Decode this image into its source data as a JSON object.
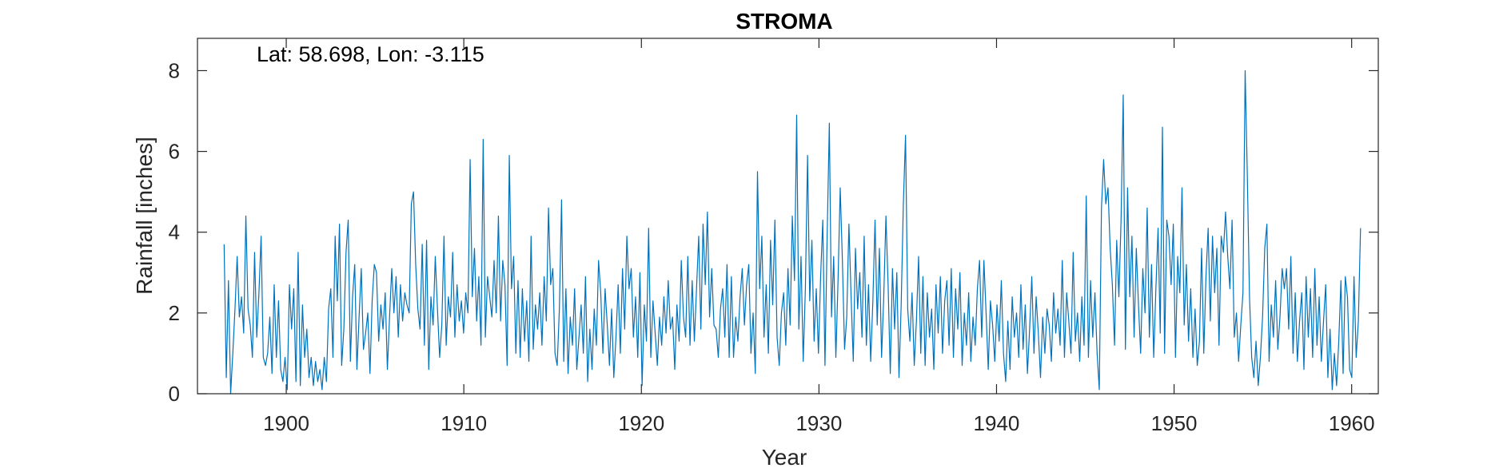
{
  "chart_data": {
    "type": "line",
    "title": "STROMA",
    "xlabel": "Year",
    "ylabel": "Rainfall [inches]",
    "annotation": "Lat: 58.698, Lon: -3.115",
    "xlim": [
      1895,
      1961.5
    ],
    "ylim": [
      0,
      8.8
    ],
    "xticks": [
      1900,
      1910,
      1920,
      1930,
      1940,
      1950,
      1960
    ],
    "yticks": [
      0,
      2,
      4,
      6,
      8
    ],
    "grid": false,
    "series_color": "#0072BD",
    "series": [
      {
        "values": [
          3.7,
          0.4,
          2.8,
          0.0,
          1.0,
          2.1,
          3.4,
          1.9,
          2.4,
          1.5,
          4.4,
          2.1,
          1.7,
          0.9,
          3.5,
          1.4,
          2.5,
          3.9,
          0.9,
          0.7,
          1.0,
          1.9,
          0.5,
          2.7,
          0.9,
          2.3,
          0.6,
          0.3,
          0.9,
          0.1,
          2.7,
          1.6,
          2.6,
          0.3,
          3.5,
          0.2,
          2.2,
          0.9,
          1.6,
          0.4,
          0.9,
          0.2,
          0.8,
          0.3,
          0.6,
          0.1,
          0.9,
          0.3,
          2.1,
          2.6,
          0.9,
          3.9,
          2.3,
          4.2,
          0.7,
          1.6,
          3.5,
          4.3,
          0.8,
          2.4,
          3.2,
          0.6,
          1.9,
          3.1,
          1.1,
          1.5,
          2.0,
          0.5,
          2.3,
          3.2,
          3.0,
          1.3,
          2.2,
          1.6,
          2.5,
          0.6,
          1.9,
          3.1,
          2.0,
          2.9,
          1.4,
          2.7,
          1.8,
          2.5,
          2.2,
          2.0,
          4.7,
          5.0,
          3.2,
          2.1,
          1.6,
          3.7,
          1.2,
          3.8,
          0.6,
          2.4,
          1.7,
          3.4,
          2.1,
          0.9,
          1.7,
          3.9,
          1.2,
          2.4,
          1.9,
          3.5,
          1.4,
          2.7,
          1.8,
          2.3,
          1.5,
          2.5,
          2.0,
          5.8,
          2.4,
          3.6,
          1.8,
          2.9,
          1.2,
          6.3,
          1.4,
          2.9,
          2.4,
          1.9,
          3.3,
          2.0,
          4.4,
          1.8,
          3.3,
          2.7,
          0.7,
          5.9,
          2.6,
          3.4,
          1.0,
          2.8,
          0.9,
          2.6,
          1.3,
          2.3,
          0.8,
          3.9,
          1.1,
          2.2,
          1.6,
          2.5,
          1.2,
          2.9,
          1.8,
          4.6,
          2.7,
          3.1,
          1.0,
          0.7,
          2.1,
          4.8,
          0.8,
          2.6,
          0.5,
          1.9,
          1.2,
          2.6,
          0.6,
          1.4,
          2.2,
          1.0,
          2.9,
          0.3,
          1.6,
          0.6,
          2.1,
          1.2,
          3.3,
          2.5,
          1.0,
          2.6,
          1.7,
          0.7,
          2.1,
          0.4,
          1.4,
          2.7,
          1.0,
          3.1,
          1.6,
          3.9,
          2.6,
          3.1,
          1.4,
          2.4,
          0.9,
          3.0,
          0.2,
          2.2,
          1.3,
          4.1,
          0.9,
          2.3,
          1.5,
          0.7,
          1.9,
          1.2,
          2.4,
          1.5,
          2.8,
          1.6,
          1.9,
          0.6,
          2.2,
          1.3,
          3.3,
          1.9,
          1.4,
          3.4,
          1.2,
          2.8,
          1.3,
          2.6,
          3.9,
          1.6,
          4.2,
          2.7,
          4.5,
          1.9,
          3.1,
          1.7,
          1.6,
          0.9,
          2.1,
          2.6,
          1.4,
          3.2,
          0.9,
          2.9,
          0.9,
          1.9,
          1.3,
          2.4,
          3.1,
          1.7,
          2.7,
          3.2,
          1.0,
          2.0,
          0.5,
          5.5,
          2.6,
          3.9,
          1.4,
          2.7,
          1.0,
          3.8,
          2.2,
          4.3,
          1.4,
          0.7,
          2.0,
          2.5,
          1.2,
          3.1,
          1.7,
          4.4,
          2.8,
          6.9,
          1.6,
          3.4,
          0.8,
          2.6,
          5.9,
          2.3,
          3.8,
          1.3,
          2.6,
          1.0,
          2.9,
          4.3,
          0.7,
          3.9,
          6.7,
          1.9,
          3.4,
          0.9,
          2.8,
          5.1,
          3.3,
          1.1,
          1.9,
          4.2,
          2.4,
          0.8,
          3.6,
          2.1,
          3.0,
          1.4,
          3.9,
          1.2,
          2.7,
          0.8,
          2.3,
          4.3,
          1.7,
          3.6,
          0.9,
          2.4,
          4.4,
          2.7,
          0.5,
          3.1,
          1.6,
          3.0,
          0.4,
          2.2,
          4.7,
          6.4,
          2.1,
          1.3,
          2.5,
          0.7,
          1.8,
          3.4,
          1.0,
          2.9,
          0.7,
          2.5,
          1.4,
          2.1,
          0.6,
          2.7,
          1.5,
          2.9,
          1.0,
          2.3,
          2.8,
          1.2,
          3.1,
          0.9,
          2.6,
          1.6,
          3.0,
          0.7,
          2.0,
          1.2,
          2.5,
          0.8,
          1.9,
          1.2,
          2.6,
          3.3,
          1.4,
          3.3,
          2.0,
          0.6,
          2.3,
          1.7,
          0.8,
          2.2,
          1.3,
          2.8,
          1.0,
          0.3,
          1.8,
          0.6,
          2.4,
          1.4,
          2.0,
          0.9,
          2.7,
          1.1,
          2.2,
          0.5,
          1.6,
          2.9,
          1.0,
          2.4,
          1.5,
          0.4,
          1.9,
          1.0,
          2.1,
          1.7,
          0.8,
          2.5,
          1.5,
          2.1,
          1.2,
          3.3,
          0.9,
          2.5,
          1.8,
          1.0,
          3.5,
          1.3,
          2.0,
          0.8,
          2.4,
          1.2,
          4.9,
          0.9,
          2.8,
          1.4,
          2.5,
          1.0,
          0.1,
          4.6,
          5.8,
          4.7,
          5.1,
          3.6,
          2.7,
          1.2,
          3.8,
          2.4,
          4.3,
          7.4,
          1.1,
          5.1,
          2.4,
          3.9,
          1.4,
          3.6,
          2.2,
          1.0,
          3.1,
          2.0,
          4.6,
          1.4,
          3.2,
          0.9,
          2.6,
          4.1,
          1.5,
          6.6,
          1.0,
          4.3,
          3.9,
          2.7,
          4.2,
          0.9,
          3.4,
          2.5,
          5.1,
          1.7,
          3.2,
          1.3,
          2.6,
          0.9,
          2.1,
          0.7,
          1.3,
          3.6,
          1.0,
          2.9,
          4.1,
          1.8,
          3.9,
          2.5,
          3.6,
          1.2,
          3.9,
          3.5,
          4.5,
          3.4,
          2.6,
          4.3,
          1.4,
          2.0,
          0.8,
          1.7,
          2.5,
          8.0,
          5.4,
          2.4,
          0.9,
          0.4,
          1.3,
          0.2,
          0.9,
          1.9,
          3.6,
          4.2,
          0.8,
          2.2,
          1.4,
          2.8,
          1.1,
          1.9,
          3.1,
          2.6,
          3.1,
          1.6,
          3.4,
          1.0,
          2.5,
          0.8,
          1.8,
          2.5,
          0.6,
          2.9,
          1.4,
          2.6,
          0.9,
          3.1,
          1.2,
          2.4,
          0.8,
          1.8,
          2.7,
          0.4,
          1.6,
          0.1,
          1.0,
          0.2,
          1.3,
          2.8,
          0.5,
          2.9,
          2.4,
          0.6,
          0.4,
          2.9,
          0.9,
          1.8,
          4.1
        ]
      }
    ]
  }
}
